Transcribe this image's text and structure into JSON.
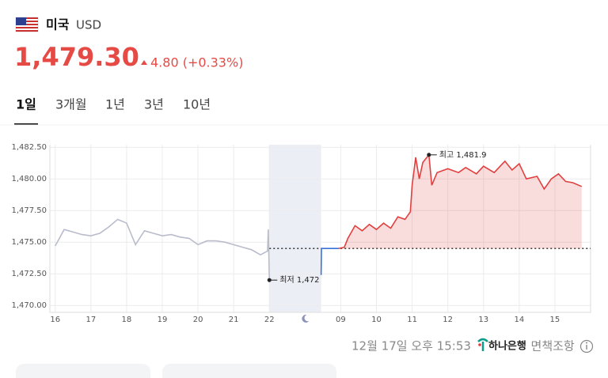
{
  "header": {
    "country": "미국",
    "currency": "USD",
    "price": "1,479.30",
    "change": "4.80 (+0.33%)"
  },
  "tabs": {
    "items": [
      "1일",
      "3개월",
      "1년",
      "3년",
      "10년"
    ],
    "active": 0
  },
  "chart_data": {
    "type": "line",
    "xlim": [
      -0.15,
      15.0
    ],
    "xticks": [
      {
        "value": 0,
        "label": "16"
      },
      {
        "value": 1,
        "label": "17"
      },
      {
        "value": 2,
        "label": "18"
      },
      {
        "value": 3,
        "label": "19"
      },
      {
        "value": 4,
        "label": "20"
      },
      {
        "value": 5,
        "label": "21"
      },
      {
        "value": 6,
        "label": "22"
      },
      {
        "value": 8,
        "label": "09"
      },
      {
        "value": 9,
        "label": "10"
      },
      {
        "value": 10,
        "label": "11"
      },
      {
        "value": 11,
        "label": "12"
      },
      {
        "value": 12,
        "label": "13"
      },
      {
        "value": 13,
        "label": "14"
      },
      {
        "value": 14,
        "label": "15"
      }
    ],
    "night_tick": 7,
    "ylim": [
      1469.45,
      1482.7
    ],
    "yticks": [
      {
        "value": 1470,
        "label": "1,470.00"
      },
      {
        "value": 1472.5,
        "label": "1,472.50"
      },
      {
        "value": 1475,
        "label": "1,475.00"
      },
      {
        "value": 1477.5,
        "label": "1,477.50"
      },
      {
        "value": 1480,
        "label": "1,480.00"
      },
      {
        "value": 1482.5,
        "label": "1,482.50"
      }
    ],
    "grid": true,
    "shaded_range": [
      6,
      7.45
    ],
    "baseline": 1474.5,
    "series": [
      {
        "color": "#b9bccb",
        "fill": false,
        "x": [
          0,
          0.25,
          0.5,
          0.75,
          1,
          1.25,
          1.5,
          1.75,
          2,
          2.25,
          2.5,
          2.75,
          3,
          3.25,
          3.5,
          3.75,
          4,
          4.25,
          4.5,
          4.75,
          5,
          5.25,
          5.5,
          5.75,
          5.95,
          5.97,
          6
        ],
        "values": [
          1474.7,
          1476.0,
          1475.8,
          1475.6,
          1475.5,
          1475.7,
          1476.2,
          1476.8,
          1476.5,
          1474.8,
          1475.9,
          1475.7,
          1475.5,
          1475.6,
          1475.4,
          1475.3,
          1474.8,
          1475.1,
          1475.1,
          1475.0,
          1474.8,
          1474.6,
          1474.4,
          1474.0,
          1474.3,
          1476.0,
          1472.0
        ]
      },
      {
        "color": "#3a72d8",
        "fill": false,
        "x": [
          7.45,
          7.46,
          7.95
        ],
        "values": [
          1472.4,
          1474.5,
          1474.5
        ]
      },
      {
        "color": "#e0403f",
        "fill": true,
        "x": [
          7.95,
          8.1,
          8.2,
          8.4,
          8.6,
          8.8,
          9.0,
          9.2,
          9.4,
          9.6,
          9.8,
          9.95,
          10.0,
          10.1,
          10.2,
          10.3,
          10.47,
          10.55,
          10.7,
          11.0,
          11.3,
          11.5,
          11.8,
          12.0,
          12.3,
          12.6,
          12.8,
          13.0,
          13.2,
          13.5,
          13.7,
          13.9,
          14.1,
          14.3,
          14.5,
          14.75
        ],
        "values": [
          1474.5,
          1474.6,
          1475.3,
          1476.3,
          1475.9,
          1476.4,
          1476.0,
          1476.5,
          1476.1,
          1477.0,
          1476.8,
          1477.4,
          1479.5,
          1481.7,
          1480.0,
          1481.3,
          1481.9,
          1479.5,
          1480.5,
          1480.8,
          1480.5,
          1480.9,
          1480.4,
          1481.0,
          1480.5,
          1481.4,
          1480.7,
          1481.2,
          1480.0,
          1480.2,
          1479.2,
          1480.0,
          1480.4,
          1479.8,
          1479.7,
          1479.4
        ]
      }
    ],
    "annotations": [
      {
        "text": "최고 1,481.9",
        "x": 10.47,
        "y": 1481.9
      },
      {
        "text": "최저 1,472",
        "x": 6,
        "y": 1472
      }
    ]
  },
  "footer": {
    "timestamp": "12월 17일 오후 15:53",
    "bank": "하나은행",
    "disclaimer": "· 면책조항"
  }
}
